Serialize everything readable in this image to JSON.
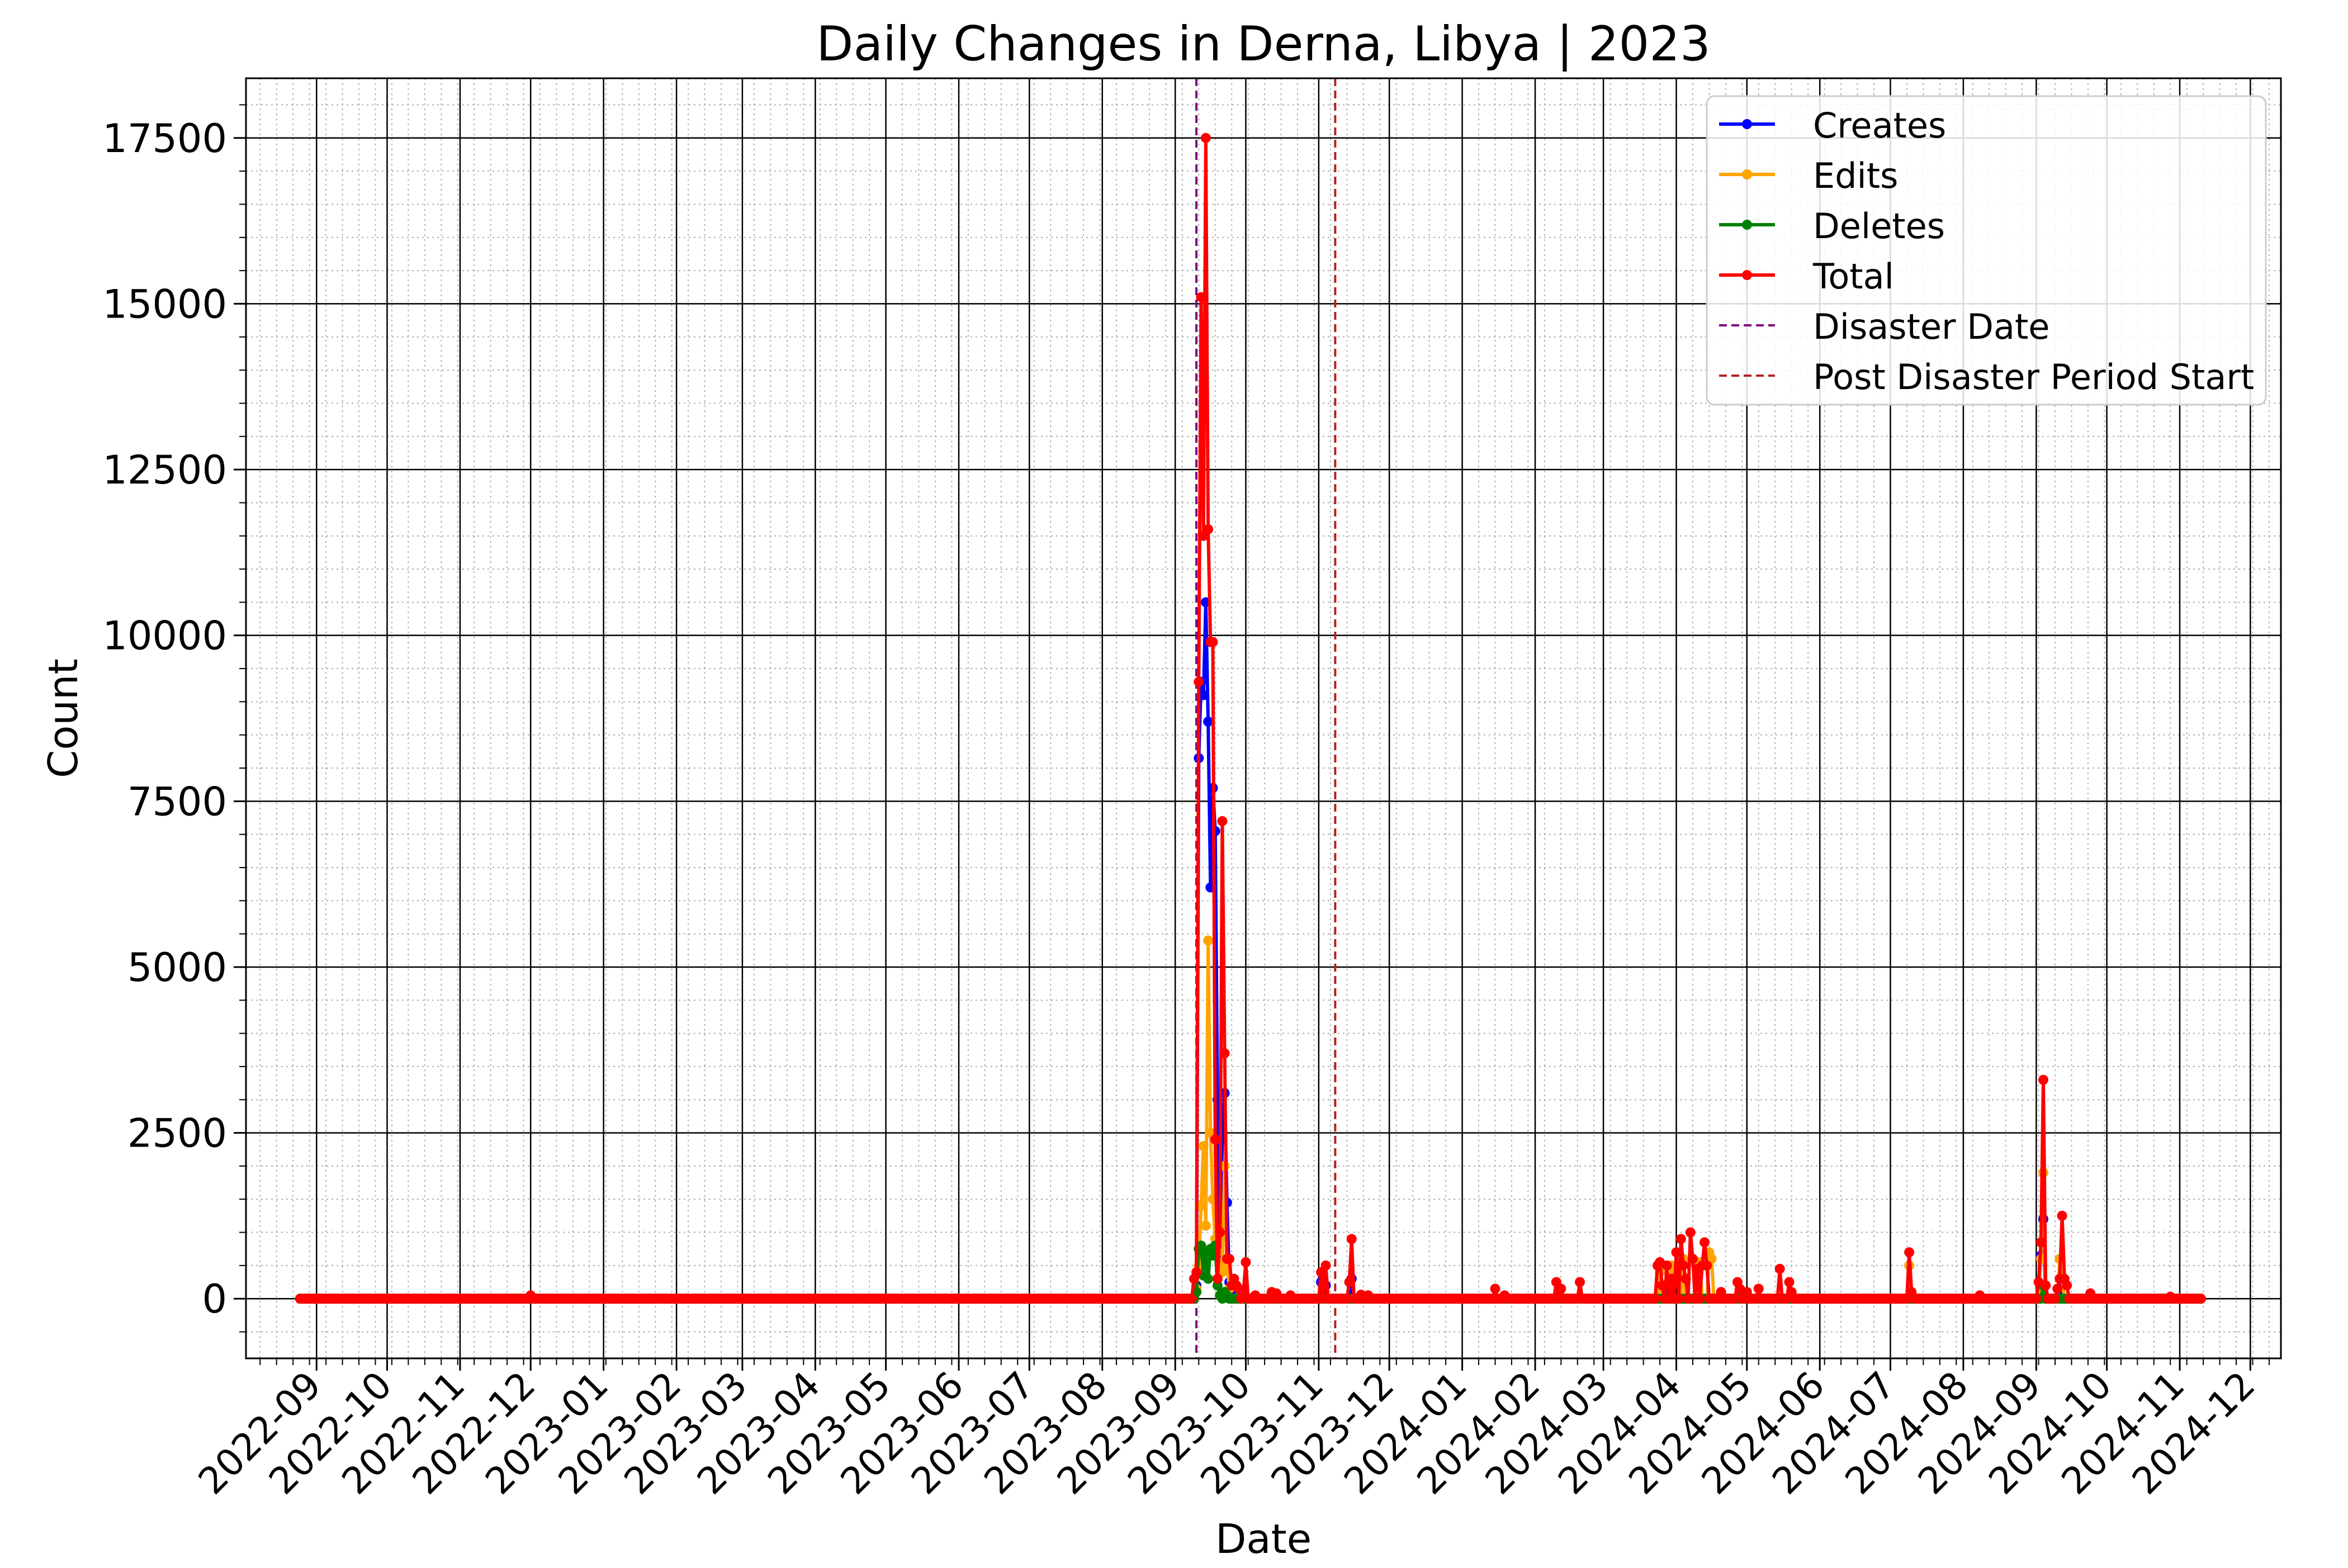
{
  "chart_data": {
    "type": "line",
    "title": "Daily Changes in Derna, Libya | 2023",
    "xlabel": "Date",
    "ylabel": "Count",
    "x_range": [
      "2022-08-02",
      "2024-12-14"
    ],
    "ylim": [
      -900,
      18400
    ],
    "y_ticks": [
      0,
      2500,
      5000,
      7500,
      10000,
      12500,
      15000,
      17500
    ],
    "x_ticks": [
      "2022-09",
      "2022-10",
      "2022-11",
      "2022-12",
      "2023-01",
      "2023-02",
      "2023-03",
      "2023-04",
      "2023-05",
      "2023-06",
      "2023-07",
      "2023-08",
      "2023-09",
      "2023-10",
      "2023-11",
      "2023-12",
      "2024-01",
      "2024-02",
      "2024-03",
      "2024-04",
      "2024-05",
      "2024-06",
      "2024-07",
      "2024-08",
      "2024-09",
      "2024-10",
      "2024-11",
      "2024-12"
    ],
    "grid": "major solid, minor dotted",
    "legend_position": "top-right",
    "series_range": [
      "2022-08-25",
      "2024-11-10"
    ],
    "vlines": [
      {
        "name": "Disaster Date",
        "date": "2023-09-10",
        "color": "#800080"
      },
      {
        "name": "Post Disaster Period Start",
        "date": "2023-11-08",
        "color": "#b22222"
      }
    ],
    "series": [
      {
        "name": "Creates",
        "color": "#0000ff",
        "points": [
          [
            "2023-09-10",
            200
          ],
          [
            "2023-09-11",
            8150
          ],
          [
            "2023-09-12",
            9300
          ],
          [
            "2023-09-13",
            9100
          ],
          [
            "2023-09-14",
            10500
          ],
          [
            "2023-09-15",
            8700
          ],
          [
            "2023-09-16",
            6200
          ],
          [
            "2023-09-17",
            7700
          ],
          [
            "2023-09-18",
            7050
          ],
          [
            "2023-09-19",
            3000
          ],
          [
            "2023-09-20",
            600
          ],
          [
            "2023-09-21",
            2400
          ],
          [
            "2023-09-22",
            3100
          ],
          [
            "2023-09-23",
            1450
          ],
          [
            "2023-09-24",
            250
          ],
          [
            "2023-09-25",
            120
          ],
          [
            "2023-11-02",
            250
          ],
          [
            "2023-11-04",
            200
          ],
          [
            "2023-11-15",
            300
          ],
          [
            "2024-03-27",
            150
          ],
          [
            "2024-04-10",
            250
          ],
          [
            "2024-09-03",
            650
          ],
          [
            "2024-09-04",
            1200
          ],
          [
            "2024-09-12",
            200
          ]
        ]
      },
      {
        "name": "Edits",
        "color": "#ffa500",
        "points": [
          [
            "2023-09-10",
            150
          ],
          [
            "2023-09-11",
            500
          ],
          [
            "2023-09-12",
            1400
          ],
          [
            "2023-09-13",
            2300
          ],
          [
            "2023-09-14",
            1100
          ],
          [
            "2023-09-15",
            5400
          ],
          [
            "2023-09-16",
            2500
          ],
          [
            "2023-09-17",
            1500
          ],
          [
            "2023-09-18",
            900
          ],
          [
            "2023-09-19",
            700
          ],
          [
            "2023-09-20",
            550
          ],
          [
            "2023-09-21",
            400
          ],
          [
            "2023-09-22",
            2000
          ],
          [
            "2023-09-23",
            500
          ],
          [
            "2023-09-24",
            150
          ],
          [
            "2024-03-25",
            400
          ],
          [
            "2024-03-30",
            500
          ],
          [
            "2024-04-04",
            600
          ],
          [
            "2024-04-11",
            550
          ],
          [
            "2024-04-15",
            700
          ],
          [
            "2024-04-16",
            600
          ],
          [
            "2024-07-09",
            500
          ],
          [
            "2024-09-03",
            600
          ],
          [
            "2024-09-04",
            1900
          ],
          [
            "2024-09-11",
            600
          ],
          [
            "2024-09-12",
            300
          ]
        ]
      },
      {
        "name": "Deletes",
        "color": "#008000",
        "points": [
          [
            "2023-09-10",
            100
          ],
          [
            "2023-09-11",
            750
          ],
          [
            "2023-09-12",
            800
          ],
          [
            "2023-09-13",
            350
          ],
          [
            "2023-09-14",
            700
          ],
          [
            "2023-09-15",
            300
          ],
          [
            "2023-09-16",
            750
          ],
          [
            "2023-09-17",
            650
          ],
          [
            "2023-09-18",
            800
          ],
          [
            "2023-09-19",
            200
          ],
          [
            "2023-09-20",
            50
          ],
          [
            "2023-09-21",
            0
          ],
          [
            "2023-09-22",
            100
          ],
          [
            "2023-09-23",
            50
          ],
          [
            "2024-09-04",
            200
          ]
        ]
      },
      {
        "name": "Total",
        "color": "#ff0000",
        "points": [
          [
            "2022-12-01",
            50
          ],
          [
            "2023-09-09",
            300
          ],
          [
            "2023-09-10",
            400
          ],
          [
            "2023-09-11",
            9300
          ],
          [
            "2023-09-12",
            15100
          ],
          [
            "2023-09-13",
            11500
          ],
          [
            "2023-09-14",
            17500
          ],
          [
            "2023-09-15",
            11600
          ],
          [
            "2023-09-16",
            9900
          ],
          [
            "2023-09-17",
            9900
          ],
          [
            "2023-09-18",
            2400
          ],
          [
            "2023-09-19",
            300
          ],
          [
            "2023-09-20",
            1000
          ],
          [
            "2023-09-21",
            7200
          ],
          [
            "2023-09-22",
            3700
          ],
          [
            "2023-09-23",
            600
          ],
          [
            "2023-09-24",
            600
          ],
          [
            "2023-09-25",
            200
          ],
          [
            "2023-09-26",
            300
          ],
          [
            "2023-09-27",
            200
          ],
          [
            "2023-09-28",
            150
          ],
          [
            "2023-09-30",
            100
          ],
          [
            "2023-10-01",
            550
          ],
          [
            "2023-10-05",
            50
          ],
          [
            "2023-10-12",
            100
          ],
          [
            "2023-10-14",
            80
          ],
          [
            "2023-10-20",
            50
          ],
          [
            "2023-11-02",
            400
          ],
          [
            "2023-11-04",
            500
          ],
          [
            "2023-11-14",
            250
          ],
          [
            "2023-11-15",
            900
          ],
          [
            "2023-11-19",
            60
          ],
          [
            "2023-11-22",
            50
          ],
          [
            "2024-01-15",
            150
          ],
          [
            "2024-01-19",
            50
          ],
          [
            "2024-02-10",
            250
          ],
          [
            "2024-02-12",
            150
          ],
          [
            "2024-02-20",
            250
          ],
          [
            "2024-03-24",
            500
          ],
          [
            "2024-03-25",
            550
          ],
          [
            "2024-03-26",
            200
          ],
          [
            "2024-03-28",
            500
          ],
          [
            "2024-03-30",
            300
          ],
          [
            "2024-04-01",
            700
          ],
          [
            "2024-04-03",
            900
          ],
          [
            "2024-04-04",
            500
          ],
          [
            "2024-04-05",
            300
          ],
          [
            "2024-04-07",
            1000
          ],
          [
            "2024-04-08",
            600
          ],
          [
            "2024-04-10",
            450
          ],
          [
            "2024-04-12",
            500
          ],
          [
            "2024-04-13",
            850
          ],
          [
            "2024-04-14",
            500
          ],
          [
            "2024-04-20",
            100
          ],
          [
            "2024-04-27",
            250
          ],
          [
            "2024-04-28",
            150
          ],
          [
            "2024-05-01",
            100
          ],
          [
            "2024-05-06",
            150
          ],
          [
            "2024-05-15",
            450
          ],
          [
            "2024-05-19",
            250
          ],
          [
            "2024-05-20",
            100
          ],
          [
            "2024-07-09",
            700
          ],
          [
            "2024-07-10",
            100
          ],
          [
            "2024-08-08",
            50
          ],
          [
            "2024-09-02",
            250
          ],
          [
            "2024-09-03",
            850
          ],
          [
            "2024-09-04",
            3300
          ],
          [
            "2024-09-05",
            200
          ],
          [
            "2024-09-10",
            150
          ],
          [
            "2024-09-11",
            300
          ],
          [
            "2024-09-12",
            1250
          ],
          [
            "2024-09-13",
            300
          ],
          [
            "2024-09-14",
            200
          ],
          [
            "2024-09-24",
            80
          ],
          [
            "2024-10-28",
            30
          ]
        ]
      }
    ]
  }
}
